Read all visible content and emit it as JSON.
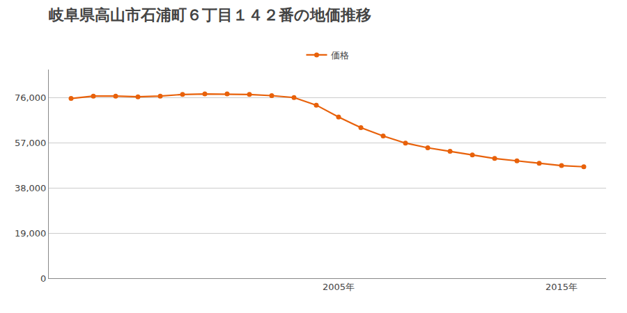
{
  "chart_data": {
    "type": "line",
    "title": "岐阜県高山市石浦町６丁目１４２番の地価推移",
    "x": [
      1993,
      1994,
      1995,
      1996,
      1997,
      1998,
      1999,
      2000,
      2001,
      2002,
      2003,
      2004,
      2005,
      2006,
      2007,
      2008,
      2009,
      2010,
      2011,
      2012,
      2013,
      2014,
      2015,
      2016
    ],
    "series": [
      {
        "name": "価格",
        "color": "#e8610a",
        "marker": "circle",
        "values": [
          75800,
          76800,
          76800,
          76500,
          76800,
          77500,
          77700,
          77700,
          77500,
          77000,
          76200,
          73000,
          68000,
          63500,
          60000,
          57000,
          55000,
          53500,
          52000,
          50500,
          49500,
          48500,
          47500,
          47000
        ]
      }
    ],
    "xlim": [
      1992,
      2017
    ],
    "xticks": [
      {
        "value": 2005,
        "label": "2005年"
      },
      {
        "value": 2015,
        "label": "2015年"
      }
    ],
    "ylim": [
      0,
      88000
    ],
    "yticks": [
      0,
      {
        "value": 19000,
        "label": "19,000"
      },
      {
        "value": 38000,
        "label": "38,000"
      },
      {
        "value": 57000,
        "label": "57,000"
      },
      {
        "value": 76000,
        "label": "76,000"
      }
    ],
    "grid": true,
    "legend": "top"
  }
}
